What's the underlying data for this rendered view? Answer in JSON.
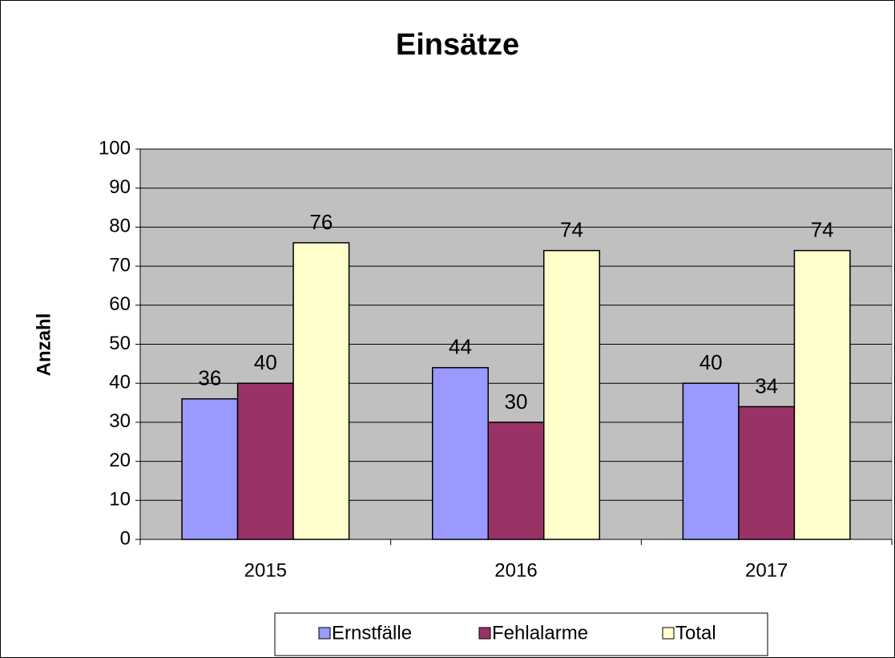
{
  "chart_data": {
    "type": "bar",
    "title": "Einsätze",
    "y_label": "Anzahl",
    "categories": [
      "2015",
      "2016",
      "2017"
    ],
    "series": [
      {
        "name": "Ernstfälle",
        "color": "#9999ff",
        "values": [
          36,
          44,
          40
        ]
      },
      {
        "name": "Fehlalarme",
        "color": "#993366",
        "values": [
          40,
          30,
          34
        ]
      },
      {
        "name": "Total",
        "color": "#ffffcc",
        "values": [
          76,
          74,
          74
        ]
      }
    ],
    "ylim": [
      0,
      100
    ],
    "yticks": [
      0,
      10,
      20,
      30,
      40,
      50,
      60,
      70,
      80,
      90,
      100
    ],
    "grid": true,
    "plot_background": "#c0c0c0",
    "legend": "bottom"
  }
}
